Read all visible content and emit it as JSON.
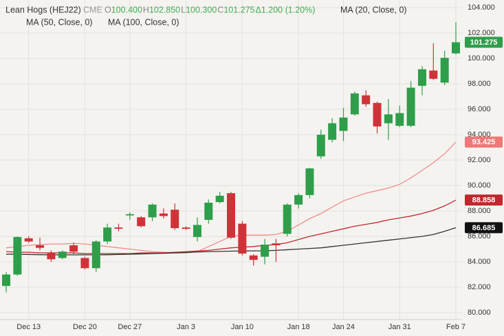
{
  "chart_data": {
    "type": "candlestick",
    "symbol": "Lean Hogs (HEJ22)",
    "exchange": "CME",
    "quote": [
      {
        "key": "O",
        "text": "100.400"
      },
      {
        "key": "H",
        "text": "102.850"
      },
      {
        "key": "L",
        "text": "100.300"
      },
      {
        "key": "C",
        "text": "101.275"
      }
    ],
    "change": "Δ1.200 (1.20%)",
    "categories": [
      null,
      null,
      "Dec 13",
      null,
      null,
      null,
      null,
      "Dec 20",
      null,
      null,
      null,
      "Dec 27",
      null,
      null,
      null,
      null,
      "Jan 3",
      null,
      null,
      null,
      null,
      "Jan 10",
      null,
      null,
      null,
      null,
      "Jan 18",
      null,
      null,
      null,
      "Jan 24",
      null,
      null,
      null,
      null,
      "Jan 31",
      null,
      null,
      null,
      null,
      "Feb 7"
    ],
    "open": [
      82.1,
      83.0,
      85.85,
      85.3,
      84.7,
      84.3,
      85.3,
      84.3,
      83.5,
      85.6,
      86.7,
      87.65,
      87.5,
      87.5,
      87.8,
      88.1,
      86.7,
      85.95,
      87.3,
      88.7,
      89.4,
      87.0,
      84.5,
      84.4,
      85.45,
      86.2,
      88.5,
      89.25,
      92.3,
      93.6,
      94.3,
      95.6,
      97.1,
      96.5,
      94.9,
      94.7,
      94.7,
      97.85,
      99.05,
      98.1,
      100.4
    ],
    "high": [
      83.2,
      86.0,
      86.0,
      85.9,
      84.9,
      84.9,
      85.5,
      84.4,
      85.7,
      87.0,
      87.0,
      87.9,
      87.6,
      88.6,
      88.2,
      88.6,
      86.8,
      87.5,
      88.9,
      89.5,
      89.5,
      87.2,
      84.6,
      85.8,
      85.8,
      88.6,
      89.4,
      91.4,
      94.4,
      95.3,
      96.1,
      97.4,
      97.5,
      96.6,
      96.8,
      96.3,
      98.2,
      99.4,
      101.2,
      100.6,
      102.85
    ],
    "low": [
      81.6,
      82.9,
      85.5,
      84.9,
      84.0,
      84.2,
      84.6,
      83.4,
      83.2,
      85.4,
      86.4,
      87.3,
      86.7,
      87.2,
      87.4,
      86.5,
      86.5,
      85.6,
      87.0,
      88.6,
      85.8,
      84.5,
      83.7,
      83.8,
      84.0,
      86.0,
      88.2,
      89.0,
      92.1,
      93.4,
      93.5,
      95.5,
      96.2,
      94.1,
      93.6,
      94.6,
      94.6,
      97.1,
      98.3,
      97.9,
      100.3
    ],
    "close": [
      83.0,
      85.95,
      85.6,
      85.1,
      84.2,
      84.8,
      84.8,
      83.5,
      85.6,
      86.7,
      86.6,
      87.75,
      86.8,
      88.5,
      87.6,
      86.65,
      86.6,
      86.9,
      88.65,
      89.2,
      85.9,
      84.65,
      84.15,
      85.35,
      85.3,
      88.5,
      89.25,
      91.35,
      94.0,
      94.9,
      95.35,
      97.25,
      96.4,
      94.65,
      95.6,
      95.7,
      97.7,
      99.15,
      98.4,
      100.05,
      101.275
    ],
    "up_color": "#2f9e4a",
    "down_color": "#cf3339",
    "series": [
      {
        "name": "MA (20, Close, 0)",
        "color": "#f08c8c",
        "values": [
          85.1,
          85.2,
          85.3,
          85.35,
          85.4,
          85.4,
          85.45,
          85.4,
          85.3,
          85.2,
          85.1,
          85.0,
          84.9,
          84.8,
          84.75,
          84.7,
          84.7,
          84.8,
          85.2,
          85.6,
          86.0,
          86.1,
          86.1,
          86.1,
          86.15,
          86.4,
          86.9,
          87.4,
          87.8,
          88.3,
          88.8,
          89.1,
          89.4,
          89.6,
          89.8,
          90.1,
          90.6,
          91.2,
          91.8,
          92.5,
          93.425
        ],
        "label_color": "#f07777"
      },
      {
        "name": "MA (50, Close, 0)",
        "color": "#c1272d",
        "values": [
          84.8,
          84.75,
          84.75,
          84.7,
          84.7,
          84.7,
          84.7,
          84.65,
          84.65,
          84.65,
          84.65,
          84.65,
          84.7,
          84.7,
          84.7,
          84.75,
          84.8,
          84.85,
          84.9,
          85.0,
          85.1,
          85.15,
          85.2,
          85.3,
          85.35,
          85.5,
          85.75,
          86.0,
          86.2,
          86.4,
          86.6,
          86.8,
          86.95,
          87.1,
          87.3,
          87.45,
          87.6,
          87.8,
          88.05,
          88.4,
          88.858
        ],
        "label_color": "#c1272d"
      },
      {
        "name": "MA (100, Close, 0)",
        "color": "#333333",
        "values": [
          84.6,
          84.6,
          84.58,
          84.56,
          84.55,
          84.55,
          84.55,
          84.55,
          84.55,
          84.56,
          84.58,
          84.6,
          84.62,
          84.65,
          84.67,
          84.7,
          84.73,
          84.77,
          84.8,
          84.82,
          84.84,
          84.85,
          84.86,
          84.87,
          84.9,
          84.95,
          85.0,
          85.05,
          85.1,
          85.2,
          85.3,
          85.4,
          85.5,
          85.6,
          85.7,
          85.8,
          85.9,
          86.0,
          86.15,
          86.4,
          86.685
        ],
        "label_color": "#111111"
      }
    ],
    "ylim": [
      79.46,
      104.6
    ],
    "yticks": [
      {
        "value": 80,
        "label": "80.000"
      },
      {
        "value": 82,
        "label": "82.000"
      },
      {
        "value": 84,
        "label": "84.000"
      },
      {
        "value": 86,
        "label": "86.000"
      },
      {
        "value": 88,
        "label": "88.000"
      },
      {
        "value": 90,
        "label": "90.000"
      },
      {
        "value": 92,
        "label": "92.000"
      },
      {
        "value": 94,
        "label": "94.000"
      },
      {
        "value": 96,
        "label": "96.000"
      },
      {
        "value": 98,
        "label": "98.000"
      },
      {
        "value": 100,
        "label": "100.000"
      },
      {
        "value": 102,
        "label": "102.000"
      },
      {
        "value": 104,
        "label": "104.000"
      }
    ],
    "grid": true
  }
}
